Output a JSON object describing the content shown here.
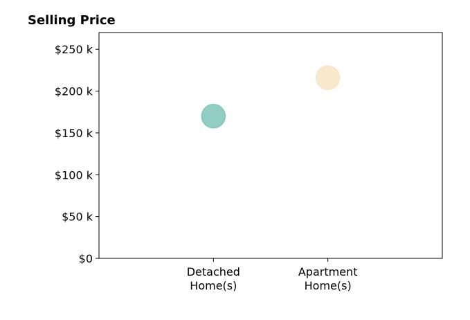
{
  "chart_data": {
    "type": "scatter",
    "title": "Selling Price",
    "xlabel": "",
    "ylabel": "",
    "categories": [
      [
        "Detached",
        "Home(s)"
      ],
      [
        "Apartment",
        "Home(s)"
      ]
    ],
    "points": [
      {
        "category_index": 0,
        "value": 170000,
        "color": "#7fc6b9"
      },
      {
        "category_index": 1,
        "value": 216000,
        "color": "#f7e5c3"
      }
    ],
    "xlim": [
      -1,
      2
    ],
    "ylim": [
      0,
      270000
    ],
    "yticks": [
      0,
      50000,
      100000,
      150000,
      200000,
      250000
    ],
    "ytick_labels": [
      "$0",
      "$50 k",
      "$100 k",
      "$150 k",
      "$200 k",
      "$250 k"
    ],
    "grid": false,
    "legend": "none"
  }
}
